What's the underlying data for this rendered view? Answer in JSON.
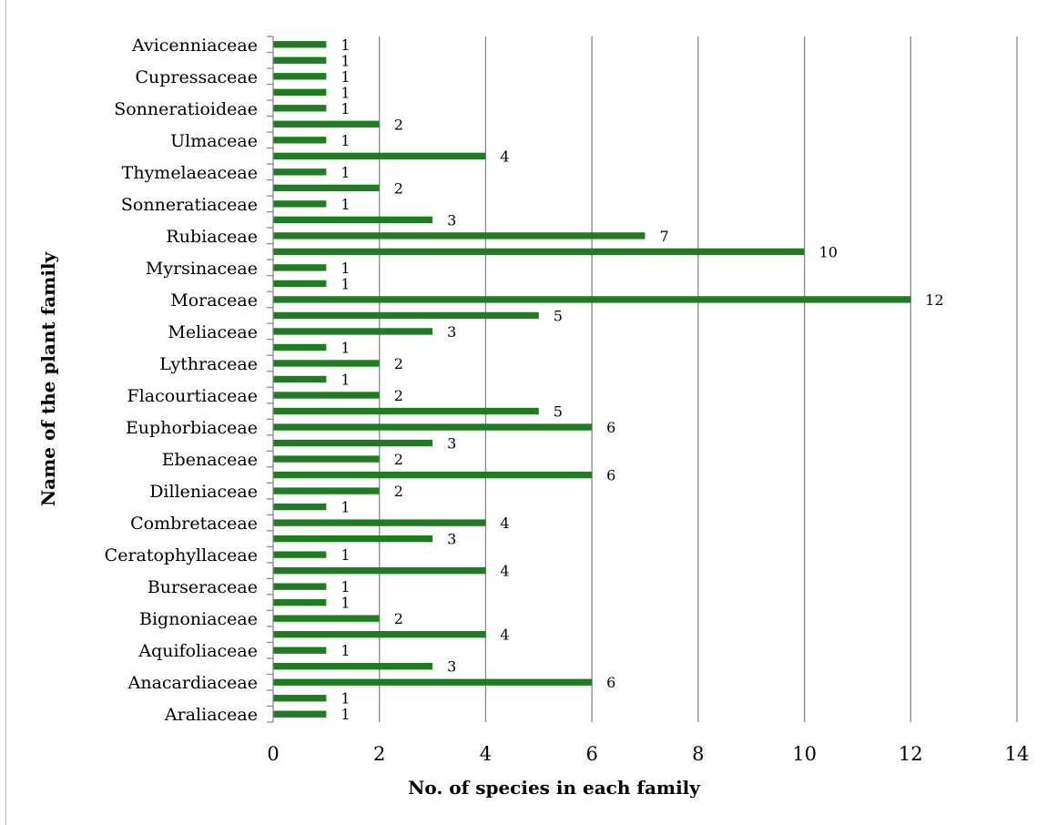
{
  "chart_data": {
    "type": "bar",
    "orientation": "horizontal",
    "xlabel": "No. of species in each family",
    "ylabel": "Name of the plant family",
    "xlim": [
      0,
      14
    ],
    "xticks": [
      0,
      2,
      4,
      6,
      8,
      10,
      12,
      14
    ],
    "grid": "vertical",
    "bar_color": "#1e7d1e",
    "categories_bottom_to_top": [
      "Araliaceae",
      "",
      "Anacardiaceae",
      "",
      "Aquifoliaceae",
      "",
      "Bignoniaceae",
      "",
      "Burseraceae",
      "",
      "Ceratophyllaceae",
      "",
      "Combretaceae",
      "",
      "Dilleniaceae",
      "",
      "Ebenaceae",
      "",
      "Euphorbiaceae",
      "",
      "Flacourtiaceae",
      "",
      "Lythraceae",
      "",
      "Meliaceae",
      "",
      "Moraceae",
      "",
      "Myrsinaceae",
      "",
      "Rubiaceae",
      "",
      "Sonneratiaceae",
      "",
      "Thymelaeaceae",
      "",
      "Ulmaceae",
      "",
      "Sonneratioideae",
      "",
      "Cupressaceae",
      "",
      "Avicenniaceae"
    ],
    "values_bottom_to_top": [
      1,
      1,
      6,
      3,
      1,
      4,
      2,
      1,
      1,
      4,
      1,
      3,
      4,
      1,
      2,
      6,
      2,
      3,
      6,
      5,
      2,
      1,
      2,
      1,
      3,
      5,
      12,
      1,
      1,
      10,
      7,
      3,
      1,
      2,
      1,
      4,
      1,
      2,
      1,
      1,
      1,
      1,
      1
    ],
    "data_labels": true
  }
}
